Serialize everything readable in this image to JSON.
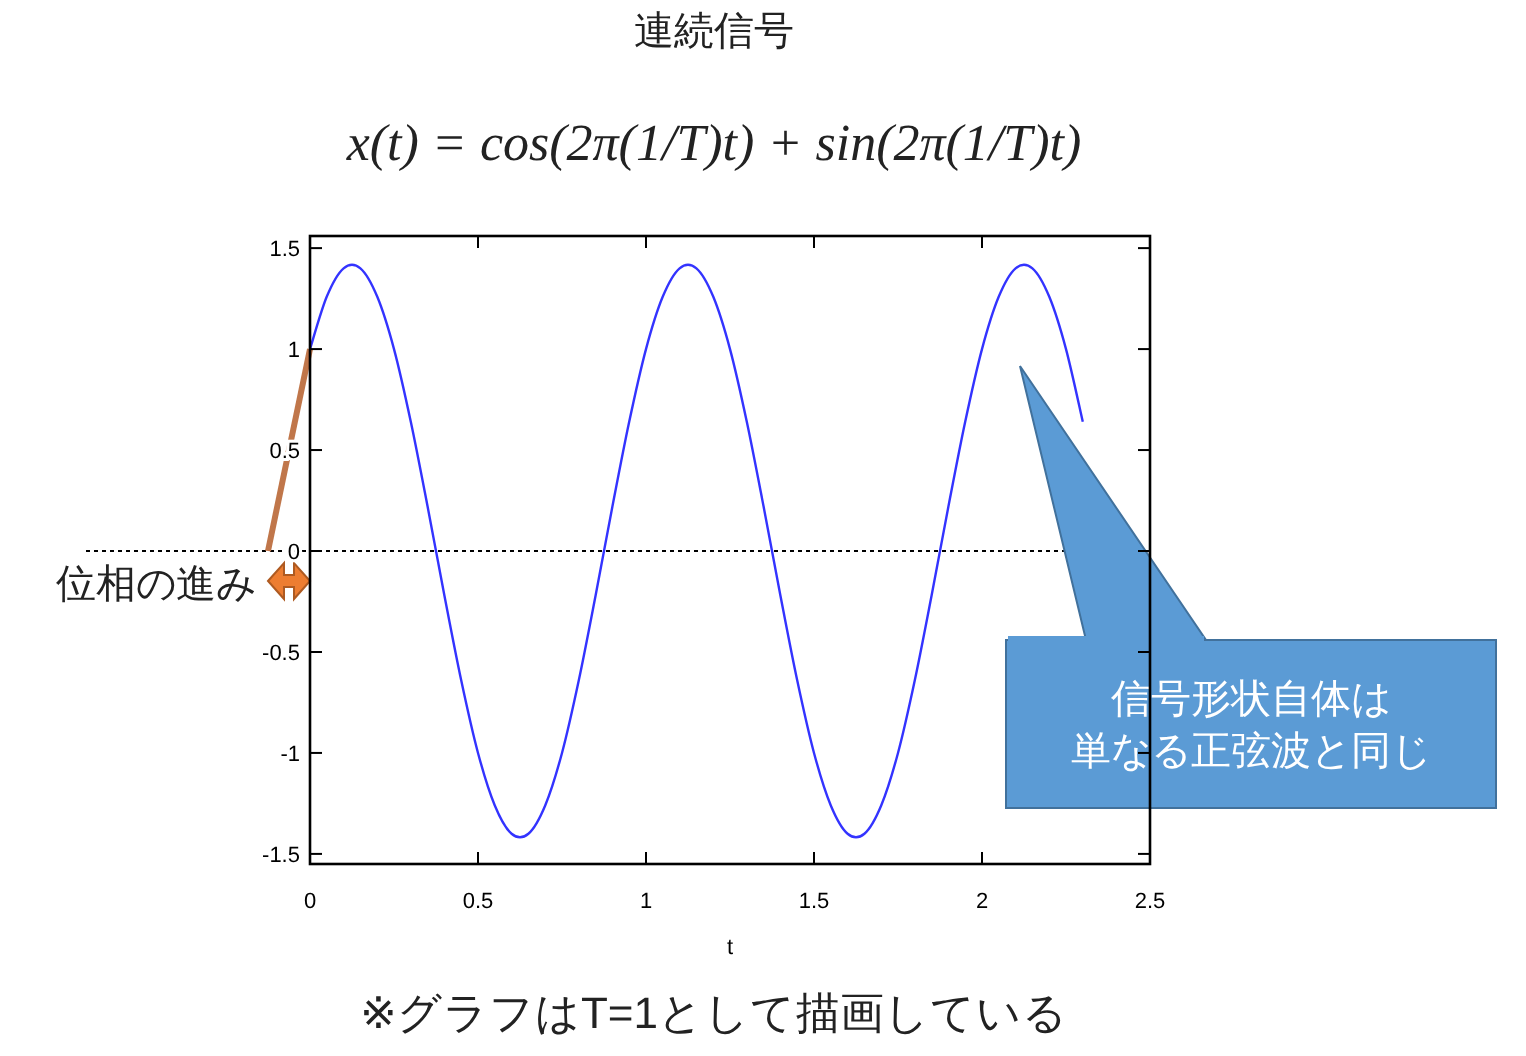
{
  "chart_data": {
    "type": "line",
    "title": "連続信号",
    "subtitle": "x(t) = cos(2π(1/T)t) + sin(2π(1/T)t)",
    "xlabel": "t",
    "x": [
      0,
      0.05,
      0.1,
      0.15,
      0.2,
      0.25,
      0.3,
      0.35,
      0.4,
      0.45,
      0.5,
      0.55,
      0.6,
      0.65,
      0.7,
      0.75,
      0.8,
      0.85,
      0.9,
      0.95,
      1,
      1.05,
      1.1,
      1.15,
      1.2,
      1.25,
      1.3,
      1.35,
      1.4,
      1.45,
      1.5,
      1.55,
      1.6,
      1.65,
      1.7,
      1.75,
      1.8,
      1.85,
      1.9,
      1.95,
      2,
      2.05,
      2.1,
      2.15,
      2.2,
      2.25,
      2.3
    ],
    "series": [
      {
        "color": "#3333ff",
        "values": [
          1,
          1.26,
          1.4,
          1.4,
          1.26,
          1,
          0.64,
          0.22,
          -0.22,
          -0.64,
          -1,
          -1.26,
          -1.4,
          -1.4,
          -1.26,
          -1,
          -0.64,
          -0.22,
          0.22,
          0.64,
          1,
          1.26,
          1.4,
          1.4,
          1.26,
          1,
          0.64,
          0.22,
          -0.22,
          -0.64,
          -1,
          -1.26,
          -1.4,
          -1.4,
          -1.26,
          -1,
          -0.64,
          -0.22,
          0.22,
          0.64,
          1,
          1.26,
          1.4,
          1.4,
          1.26,
          1,
          0.64
        ]
      }
    ],
    "xlim": [
      0,
      2.5
    ],
    "ylim": [
      -1.55,
      1.56
    ],
    "xticks": [
      0,
      0.5,
      1,
      1.5,
      2,
      2.5
    ],
    "yticks": [
      -1.5,
      -1,
      -0.5,
      0,
      0.5,
      1,
      1.5
    ],
    "ref_lines": [
      {
        "axis": "y",
        "value": 0,
        "line_style": "dotted",
        "color": "#000000"
      }
    ],
    "annotations": [
      {
        "text": "位相の進み",
        "x": -0.125,
        "y": 0
      },
      "信号形状自体は",
      "単なる正弦波と同じ",
      "※グラフはT=1として描画している"
    ],
    "grid": false,
    "marker": "none",
    "line_style": "solid"
  }
}
